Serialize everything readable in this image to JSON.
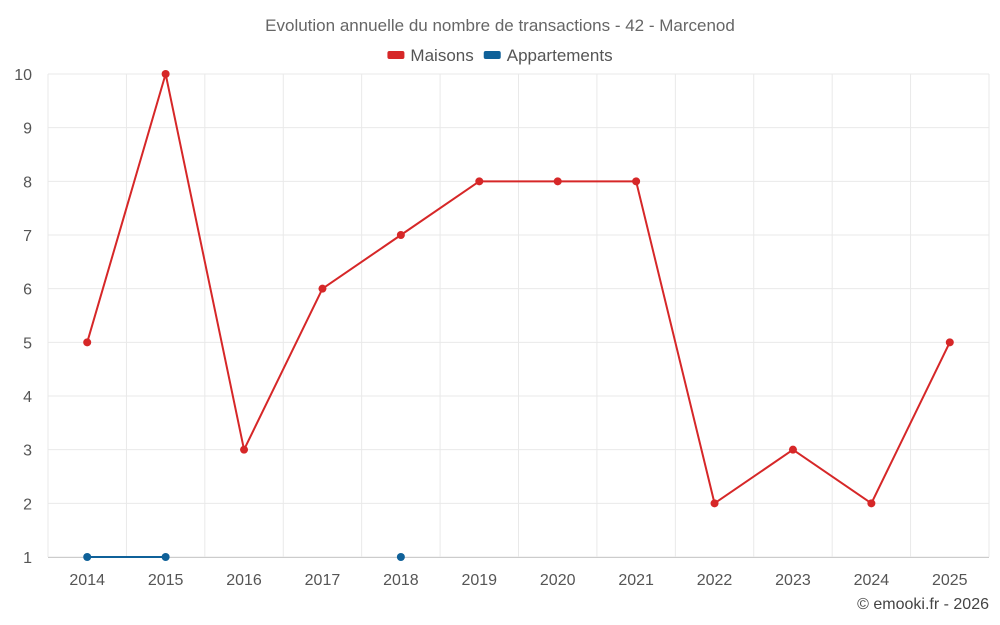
{
  "chart_data": {
    "type": "line",
    "title": "Evolution annuelle du nombre de transactions - 42 - Marcenod",
    "categories": [
      "2014",
      "2015",
      "2016",
      "2017",
      "2018",
      "2019",
      "2020",
      "2021",
      "2022",
      "2023",
      "2024",
      "2025"
    ],
    "y_ticks": [
      "1",
      "2",
      "3",
      "4",
      "5",
      "6",
      "7",
      "8",
      "9",
      "10"
    ],
    "ylim": [
      1,
      10
    ],
    "grid": true,
    "legend_position": "top-center",
    "series": [
      {
        "name": "Maisons",
        "color": "#d62728",
        "values": [
          5,
          10,
          3,
          6,
          7,
          8,
          8,
          8,
          2,
          3,
          2,
          5
        ]
      },
      {
        "name": "Appartements",
        "color": "#0f6199",
        "values": [
          1,
          1,
          null,
          null,
          1,
          null,
          null,
          null,
          null,
          null,
          null,
          null
        ]
      }
    ],
    "credit": "© emooki.fr - 2026"
  }
}
